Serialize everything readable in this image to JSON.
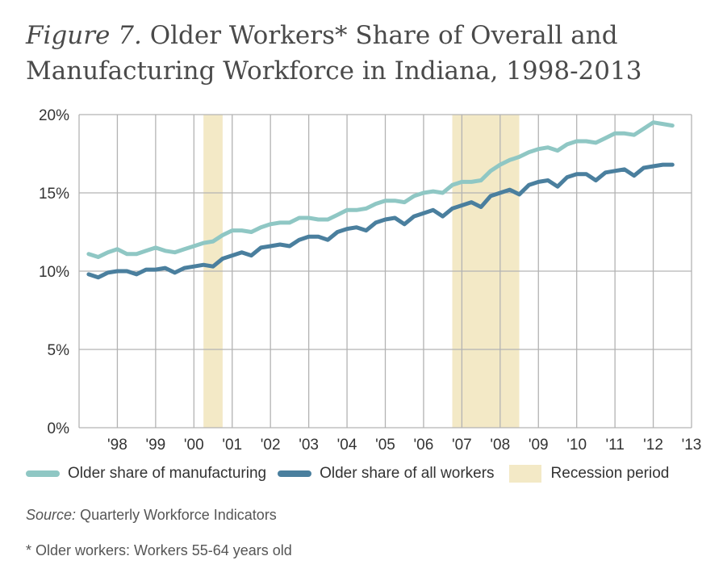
{
  "title": {
    "prefix": "Figure 7.",
    "text": "Older Workers* Share of Overall and Manufacturing Workforce in Indiana, 1998-2013"
  },
  "colors": {
    "manufacturing": "#8fc7c4",
    "all_workers": "#4a7f9e",
    "recession": "#f3e9c6",
    "grid": "#b3b3b3"
  },
  "legend": {
    "manufacturing": "Older share of manufacturing",
    "all_workers": "Older share of all workers",
    "recession": "Recession period"
  },
  "source": {
    "label": "Source:",
    "text": "Quarterly Workforce Indicators"
  },
  "footnote": "* Older workers: Workers 55-64 years old",
  "chart_data": {
    "type": "line",
    "ylim": [
      0,
      20
    ],
    "xlim": [
      1998.0,
      2014.0
    ],
    "yticks": [
      "0%",
      "5%",
      "10%",
      "15%",
      "20%"
    ],
    "xticks": [
      "'98",
      "'99",
      "'00",
      "'01",
      "'02",
      "'03",
      "'04",
      "'05",
      "'06",
      "'07",
      "'08",
      "'09",
      "'10",
      "'11",
      "'12",
      "'13"
    ],
    "grid": true,
    "legend_position": "bottom",
    "recessions": [
      [
        2001.25,
        2001.75
      ],
      [
        2007.75,
        2009.5
      ]
    ],
    "series": [
      {
        "name": "Older share of manufacturing",
        "x": [
          1998.25,
          1998.5,
          1998.75,
          1999.0,
          1999.25,
          1999.5,
          1999.75,
          2000.0,
          2000.25,
          2000.5,
          2000.75,
          2001.0,
          2001.25,
          2001.5,
          2001.75,
          2002.0,
          2002.25,
          2002.5,
          2002.75,
          2003.0,
          2003.25,
          2003.5,
          2003.75,
          2004.0,
          2004.25,
          2004.5,
          2004.75,
          2005.0,
          2005.25,
          2005.5,
          2005.75,
          2006.0,
          2006.25,
          2006.5,
          2006.75,
          2007.0,
          2007.25,
          2007.5,
          2007.75,
          2008.0,
          2008.25,
          2008.5,
          2008.75,
          2009.0,
          2009.25,
          2009.5,
          2009.75,
          2010.0,
          2010.25,
          2010.5,
          2010.75,
          2011.0,
          2011.25,
          2011.5,
          2011.75,
          2012.0,
          2012.25,
          2012.5,
          2012.75,
          2013.0,
          2013.25,
          2013.5
        ],
        "values": [
          11.1,
          10.9,
          11.2,
          11.4,
          11.1,
          11.1,
          11.3,
          11.5,
          11.3,
          11.2,
          11.4,
          11.6,
          11.8,
          11.9,
          12.3,
          12.6,
          12.6,
          12.5,
          12.8,
          13.0,
          13.1,
          13.1,
          13.4,
          13.4,
          13.3,
          13.3,
          13.6,
          13.9,
          13.9,
          14.0,
          14.3,
          14.5,
          14.5,
          14.4,
          14.8,
          15.0,
          15.1,
          15.0,
          15.5,
          15.7,
          15.7,
          15.8,
          16.4,
          16.8,
          17.1,
          17.3,
          17.6,
          17.8,
          17.9,
          17.7,
          18.1,
          18.3,
          18.3,
          18.2,
          18.5,
          18.8,
          18.8,
          18.7,
          19.1,
          19.5,
          19.4,
          19.3
        ]
      },
      {
        "name": "Older share of all workers",
        "x": [
          1998.25,
          1998.5,
          1998.75,
          1999.0,
          1999.25,
          1999.5,
          1999.75,
          2000.0,
          2000.25,
          2000.5,
          2000.75,
          2001.0,
          2001.25,
          2001.5,
          2001.75,
          2002.0,
          2002.25,
          2002.5,
          2002.75,
          2003.0,
          2003.25,
          2003.5,
          2003.75,
          2004.0,
          2004.25,
          2004.5,
          2004.75,
          2005.0,
          2005.25,
          2005.5,
          2005.75,
          2006.0,
          2006.25,
          2006.5,
          2006.75,
          2007.0,
          2007.25,
          2007.5,
          2007.75,
          2008.0,
          2008.25,
          2008.5,
          2008.75,
          2009.0,
          2009.25,
          2009.5,
          2009.75,
          2010.0,
          2010.25,
          2010.5,
          2010.75,
          2011.0,
          2011.25,
          2011.5,
          2011.75,
          2012.0,
          2012.25,
          2012.5,
          2012.75,
          2013.0,
          2013.25,
          2013.5
        ],
        "values": [
          9.8,
          9.6,
          9.9,
          10.0,
          10.0,
          9.8,
          10.1,
          10.1,
          10.2,
          9.9,
          10.2,
          10.3,
          10.4,
          10.3,
          10.8,
          11.0,
          11.2,
          11.0,
          11.5,
          11.6,
          11.7,
          11.6,
          12.0,
          12.2,
          12.2,
          12.0,
          12.5,
          12.7,
          12.8,
          12.6,
          13.1,
          13.3,
          13.4,
          13.0,
          13.5,
          13.7,
          13.9,
          13.5,
          14.0,
          14.2,
          14.4,
          14.1,
          14.8,
          15.0,
          15.2,
          14.9,
          15.5,
          15.7,
          15.8,
          15.4,
          16.0,
          16.2,
          16.2,
          15.8,
          16.3,
          16.4,
          16.5,
          16.1,
          16.6,
          16.7,
          16.8,
          16.8
        ]
      }
    ]
  }
}
